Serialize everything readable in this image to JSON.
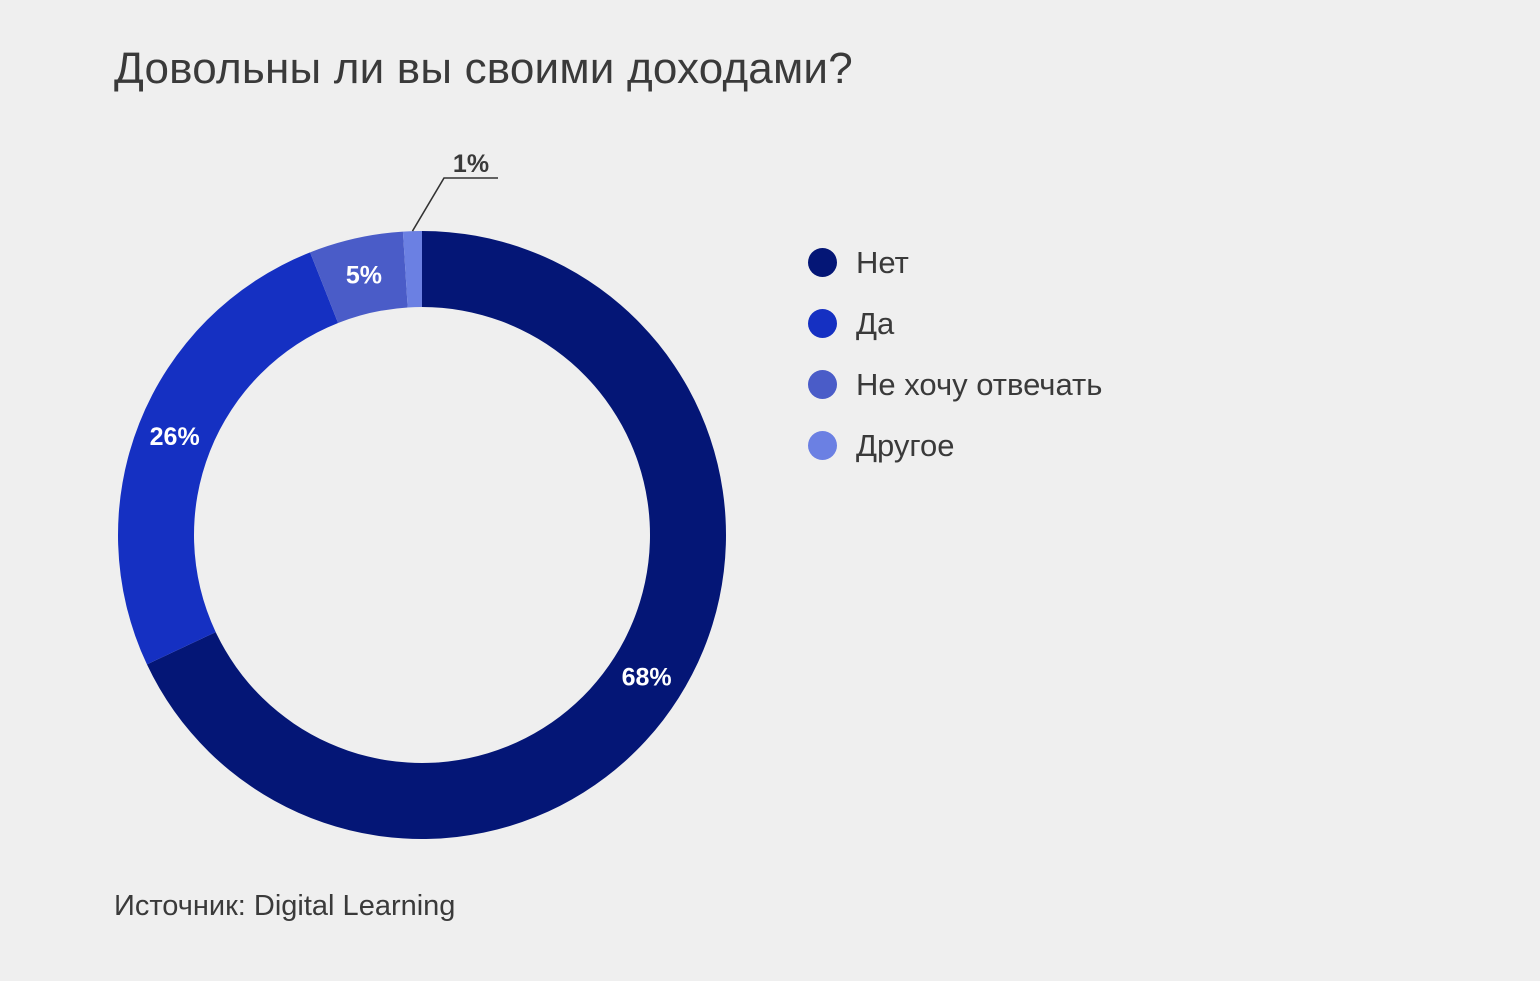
{
  "chart_data": {
    "type": "pie",
    "variant": "donut",
    "title": "Довольны ли вы своими доходами?",
    "categories": [
      "Нет",
      "Да",
      "Не хочу отвечать",
      "Другое"
    ],
    "values": [
      68,
      26,
      5,
      1
    ],
    "value_labels": [
      "68%",
      "26%",
      "5%",
      "1%"
    ],
    "colors": [
      "#041676",
      "#1530c2",
      "#4a5cc8",
      "#6b80e3"
    ],
    "legend_position": "right",
    "start_angle": "top, clockwise"
  },
  "source": "Источник: Digital Learning"
}
